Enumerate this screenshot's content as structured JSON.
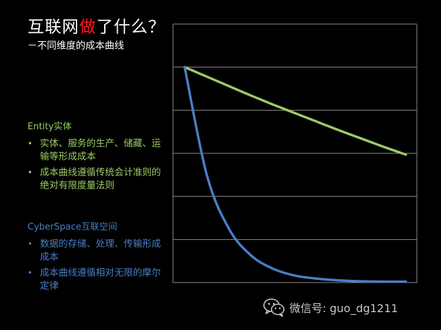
{
  "title": {
    "before": "互联网",
    "highlight": "做",
    "after": "了什么？"
  },
  "subtitle": "－不同维度的成本曲线",
  "entity": {
    "heading": "Entity实体",
    "bullets": [
      "实体、服务的生产、储藏、运输等形成成本",
      "成本曲线遵循传统会计准则的绝对有限度量法则"
    ]
  },
  "cyber": {
    "heading": "CyberSpace互联空间",
    "bullets": [
      "数据的存储、处理、传输形成成本",
      "成本曲线遵循相对无限的摩尔定律"
    ]
  },
  "bullet_glyph": "•",
  "watermark": {
    "text": "微信号: guo_dg1211",
    "icon": "wechat-icon"
  },
  "colors": {
    "background": "#000000",
    "title_accent": "#ff1a1a",
    "entity": "#9ccc65",
    "cyber": "#4a7ec8",
    "gridline": "#8c8c8c"
  },
  "chart_data": {
    "type": "line",
    "title": "",
    "xlabel": "",
    "ylabel": "",
    "ylim": [
      0,
      6
    ],
    "xlim": [
      0,
      10
    ],
    "grid": true,
    "axis_labels_shown": false,
    "series": [
      {
        "color": "#9ccc65",
        "x": [
          0,
          1,
          2,
          3,
          4,
          5,
          6,
          7,
          8,
          9,
          10
        ],
        "y": [
          5.0,
          4.78,
          4.56,
          4.34,
          4.13,
          3.93,
          3.73,
          3.53,
          3.34,
          3.15,
          2.97
        ]
      },
      {
        "color": "#4a7ec8",
        "x": [
          0,
          1,
          2,
          3,
          4,
          5,
          6,
          7,
          8,
          9,
          10
        ],
        "y": [
          5.0,
          2.5,
          1.25,
          0.63,
          0.32,
          0.16,
          0.09,
          0.05,
          0.03,
          0.02,
          0.02
        ]
      }
    ]
  }
}
